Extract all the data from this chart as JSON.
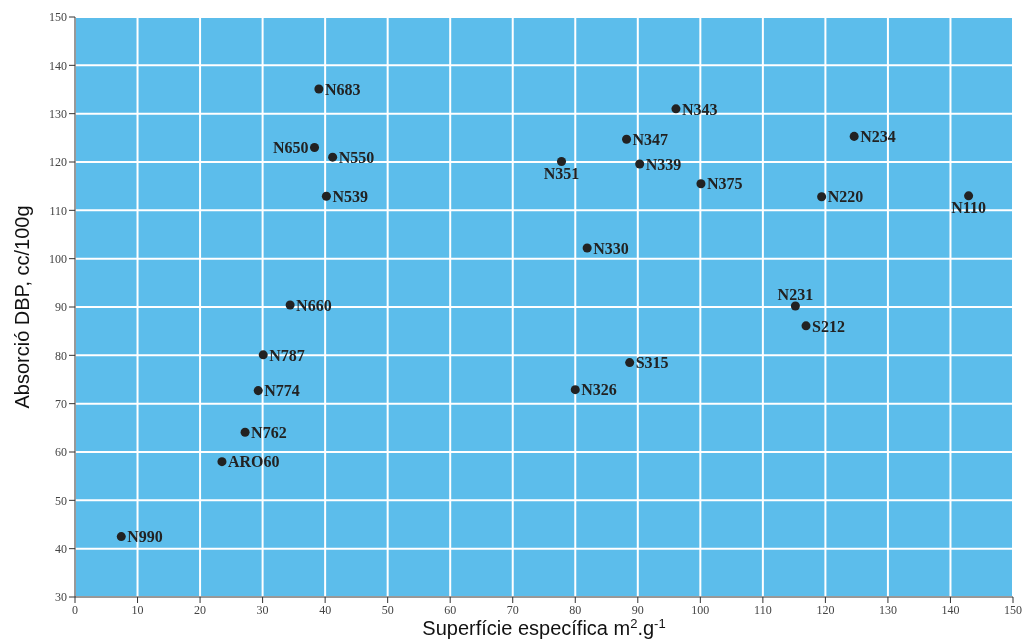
{
  "chart_data": {
    "type": "scatter",
    "xlabel": "Superfície específica m$^{2}$.g$^{-1}$",
    "ylabel": "Absorció DBP, cc/100g",
    "x": [
      39.0,
      38.3,
      41.2,
      40.2,
      34.4,
      30.1,
      29.3,
      27.2,
      23.5,
      7.4,
      96.1,
      88.2,
      77.8,
      90.3,
      100.1,
      124.6,
      119.4,
      142.9,
      81.9,
      115.2,
      116.9,
      88.7,
      80.0
    ],
    "values": [
      135.1,
      123.0,
      121.0,
      112.9,
      90.4,
      80.1,
      72.7,
      64.1,
      58.0,
      42.5,
      131.0,
      124.7,
      120.1,
      119.6,
      115.5,
      125.3,
      112.8,
      113.0,
      102.2,
      90.2,
      86.1,
      78.5,
      72.9
    ],
    "color": "#222222",
    "marker": "circle",
    "annotations": [
      {
        "text": "N683",
        "x": 39.0,
        "y": 135.1
      },
      {
        "text": "N650",
        "x": 38.3,
        "y": 123.0
      },
      {
        "text": "N550",
        "x": 41.2,
        "y": 121.0
      },
      {
        "text": "N539",
        "x": 40.2,
        "y": 112.9
      },
      {
        "text": "N660",
        "x": 34.4,
        "y": 90.4
      },
      {
        "text": "N787",
        "x": 30.1,
        "y": 80.1
      },
      {
        "text": "N774",
        "x": 29.3,
        "y": 72.7
      },
      {
        "text": "N762",
        "x": 27.2,
        "y": 64.1
      },
      {
        "text": "ARO60",
        "x": 23.5,
        "y": 58.0
      },
      {
        "text": "N990",
        "x": 7.4,
        "y": 42.5
      },
      {
        "text": "N343",
        "x": 96.1,
        "y": 131.0
      },
      {
        "text": "N347",
        "x": 88.2,
        "y": 124.7
      },
      {
        "text": "N351",
        "x": 77.8,
        "y": 120.1
      },
      {
        "text": "N339",
        "x": 90.3,
        "y": 119.6
      },
      {
        "text": "N375",
        "x": 100.1,
        "y": 115.5
      },
      {
        "text": "N234",
        "x": 124.6,
        "y": 125.3
      },
      {
        "text": "N220",
        "x": 119.4,
        "y": 112.8
      },
      {
        "text": "N110",
        "x": 142.9,
        "y": 113.0
      },
      {
        "text": "N330",
        "x": 81.9,
        "y": 102.2
      },
      {
        "text": "N231",
        "x": 115.2,
        "y": 90.2
      },
      {
        "text": "S212",
        "x": 116.9,
        "y": 86.1
      },
      {
        "text": "S315",
        "x": 88.7,
        "y": 78.5
      },
      {
        "text": "N326",
        "x": 80.0,
        "y": 72.9
      }
    ],
    "xlim": [
      0,
      150
    ],
    "xticks": [
      0,
      10,
      20,
      30,
      40,
      50,
      60,
      70,
      80,
      90,
      100,
      110,
      120,
      130,
      140,
      150
    ],
    "ylim": [
      30,
      150
    ],
    "yticks": [
      30,
      40,
      50,
      60,
      70,
      80,
      90,
      100,
      110,
      120,
      130,
      140,
      150
    ],
    "grid": true
  }
}
